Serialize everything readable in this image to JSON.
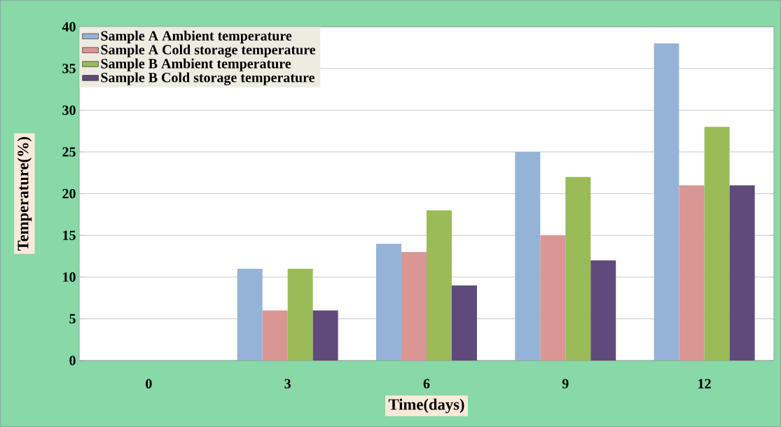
{
  "chart_data": {
    "type": "bar",
    "xlabel": "Time(days)",
    "ylabel": "Temperature(%)",
    "categories": [
      "0",
      "3",
      "6",
      "9",
      "12"
    ],
    "series": [
      {
        "name": "Sample A Ambient temperature",
        "color": "#95b3d7",
        "values": [
          0,
          11,
          14,
          25,
          38
        ]
      },
      {
        "name": "Sample A Cold storage temperature",
        "color": "#d99694",
        "values": [
          0,
          6,
          13,
          15,
          21
        ]
      },
      {
        "name": "Sample B Ambient temperature",
        "color": "#9bbb59",
        "values": [
          0,
          11,
          18,
          22,
          28
        ]
      },
      {
        "name": "Sample B Cold storage temperature",
        "color": "#604a7b",
        "values": [
          0,
          6,
          9,
          12,
          21
        ]
      }
    ],
    "ylim": [
      0,
      40
    ],
    "yticks": [
      0,
      5,
      10,
      15,
      20,
      25,
      30,
      35,
      40
    ],
    "grid": "y",
    "legend": "top left"
  }
}
